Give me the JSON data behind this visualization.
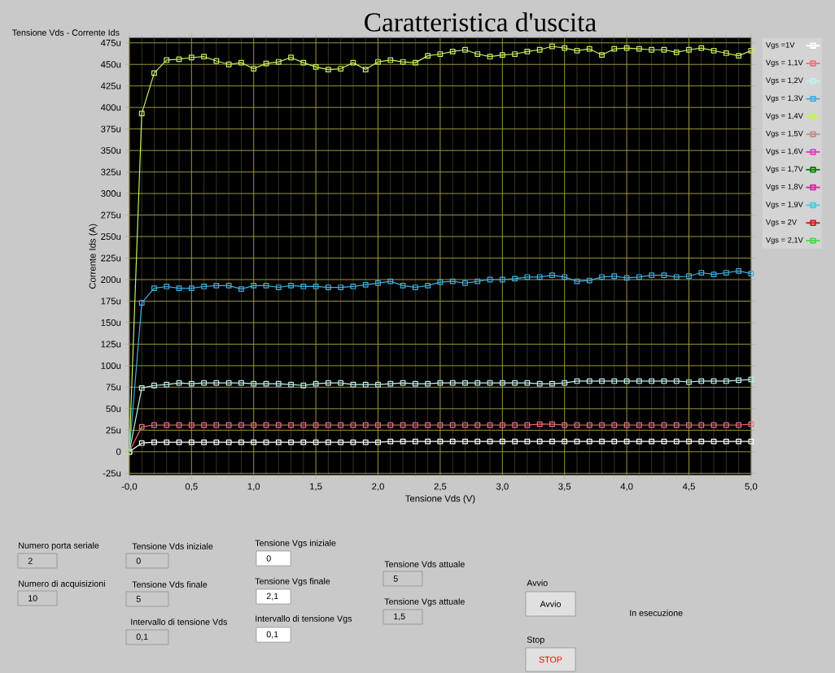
{
  "chart_data": {
    "type": "line",
    "title": "Caratteristica d'uscita",
    "subtitle": "Tensione Vds - Corrente Ids",
    "xlabel": "Tensione Vds (V)",
    "ylabel": "Corrente Ids (A)",
    "x": [
      0,
      0.1,
      0.2,
      0.3,
      0.4,
      0.5,
      0.6,
      0.7,
      0.8,
      0.9,
      1.0,
      1.1,
      1.2,
      1.3,
      1.4,
      1.5,
      1.6,
      1.7,
      1.8,
      1.9,
      2.0,
      2.1,
      2.2,
      2.3,
      2.4,
      2.5,
      2.6,
      2.7,
      2.8,
      2.9,
      3.0,
      3.1,
      3.2,
      3.3,
      3.4,
      3.5,
      3.6,
      3.7,
      3.8,
      3.9,
      4.0,
      4.1,
      4.2,
      4.3,
      4.4,
      4.5,
      4.6,
      4.7,
      4.8,
      4.9,
      5.0
    ],
    "series": [
      {
        "name": "Vgs =1V",
        "color": "#ffffff",
        "values": [
          0,
          10,
          11,
          11,
          11,
          11,
          11,
          11,
          11,
          11,
          11,
          11,
          11,
          11,
          11,
          11,
          11,
          11,
          11,
          11,
          11,
          12,
          12,
          12,
          12,
          12,
          12,
          12,
          12,
          12,
          12,
          12,
          12,
          12,
          12,
          12,
          12,
          12,
          12,
          12,
          12,
          12,
          12,
          12,
          12,
          12,
          12,
          12,
          12,
          12,
          12
        ]
      },
      {
        "name": "Vgs = 1,1V",
        "color": "#f07080",
        "values": [
          0,
          29,
          31,
          31,
          31,
          31,
          31,
          31,
          31,
          31,
          31,
          31,
          31,
          31,
          31,
          31,
          31,
          31,
          31,
          31,
          31,
          31,
          31,
          31,
          31,
          31,
          31,
          31,
          31,
          31,
          31,
          31,
          31,
          32,
          32,
          31,
          31,
          31,
          31,
          31,
          31,
          31,
          31,
          31,
          31,
          31,
          31,
          31,
          31,
          31,
          32
        ]
      },
      {
        "name": "Vgs = 1,2V",
        "color": "#c0f0f0",
        "values": [
          0,
          74,
          77,
          78,
          80,
          79,
          80,
          80,
          80,
          80,
          79,
          79,
          79,
          78,
          77,
          79,
          80,
          80,
          78,
          78,
          78,
          79,
          80,
          79,
          79,
          80,
          80,
          80,
          80,
          80,
          80,
          80,
          80,
          79,
          79,
          80,
          82,
          82,
          82,
          82,
          82,
          82,
          82,
          82,
          82,
          81,
          82,
          82,
          82,
          83,
          84
        ]
      },
      {
        "name": "Vgs = 1,3V",
        "color": "#40b0e0",
        "values": [
          0,
          173,
          190,
          192,
          190,
          190,
          192,
          193,
          193,
          189,
          193,
          193,
          191,
          193,
          192,
          192,
          191,
          191,
          192,
          194,
          196,
          198,
          193,
          191,
          193,
          197,
          198,
          196,
          198,
          200,
          200,
          201,
          203,
          203,
          205,
          203,
          198,
          199,
          203,
          204,
          202,
          203,
          205,
          205,
          203,
          204,
          208,
          206,
          208,
          210,
          207
        ]
      },
      {
        "name": "Vgs = 1,4V",
        "color": "#c8f060",
        "values": [
          0,
          393,
          440,
          455,
          456,
          458,
          459,
          454,
          450,
          452,
          445,
          451,
          453,
          458,
          452,
          447,
          444,
          445,
          452,
          444,
          453,
          455,
          453,
          452,
          460,
          462,
          465,
          467,
          462,
          459,
          461,
          462,
          465,
          467,
          471,
          469,
          466,
          468,
          461,
          468,
          469,
          468,
          467,
          467,
          464,
          467,
          469,
          466,
          463,
          460,
          466
        ]
      },
      {
        "name": "Vgs = 1,5V",
        "color": "#c09090",
        "values": [
          null,
          null,
          null,
          null,
          null,
          null,
          null,
          null,
          null,
          null,
          null,
          null,
          null,
          null,
          null,
          null,
          null,
          null,
          null,
          null,
          null,
          null,
          null,
          null,
          null,
          null,
          null,
          null,
          null,
          null,
          null,
          null,
          null,
          null,
          null,
          null,
          null,
          null,
          null,
          null,
          null,
          null,
          null,
          null,
          null,
          null,
          null,
          null,
          null,
          null,
          null
        ]
      },
      {
        "name": "Vgs = 1,6V",
        "color": "#e040c0",
        "values": [
          null,
          null,
          null,
          null,
          null,
          null,
          null,
          null,
          null,
          null,
          null,
          null,
          null,
          null,
          null,
          null,
          null,
          null,
          null,
          null,
          null,
          null,
          null,
          null,
          null,
          null,
          null,
          null,
          null,
          null,
          null,
          null,
          null,
          null,
          null,
          null,
          null,
          null,
          null,
          null,
          null,
          null,
          null,
          null,
          null,
          null,
          null,
          null,
          null,
          null,
          null
        ]
      },
      {
        "name": "Vgs = 1,7V",
        "color": "#008000",
        "values": [
          null,
          null,
          null,
          null,
          null,
          null,
          null,
          null,
          null,
          null,
          null,
          null,
          null,
          null,
          null,
          null,
          null,
          null,
          null,
          null,
          null,
          null,
          null,
          null,
          null,
          null,
          null,
          null,
          null,
          null,
          null,
          null,
          null,
          null,
          null,
          null,
          null,
          null,
          null,
          null,
          null,
          null,
          null,
          null,
          null,
          null,
          null,
          null,
          null,
          null,
          null
        ]
      },
      {
        "name": "Vgs = 1,8V",
        "color": "#e020a0",
        "values": [
          null,
          null,
          null,
          null,
          null,
          null,
          null,
          null,
          null,
          null,
          null,
          null,
          null,
          null,
          null,
          null,
          null,
          null,
          null,
          null,
          null,
          null,
          null,
          null,
          null,
          null,
          null,
          null,
          null,
          null,
          null,
          null,
          null,
          null,
          null,
          null,
          null,
          null,
          null,
          null,
          null,
          null,
          null,
          null,
          null,
          null,
          null,
          null,
          null,
          null,
          null
        ]
      },
      {
        "name": "Vgs = 1,9V",
        "color": "#40d0e0",
        "values": [
          null,
          null,
          null,
          null,
          null,
          null,
          null,
          null,
          null,
          null,
          null,
          null,
          null,
          null,
          null,
          null,
          null,
          null,
          null,
          null,
          null,
          null,
          null,
          null,
          null,
          null,
          null,
          null,
          null,
          null,
          null,
          null,
          null,
          null,
          null,
          null,
          null,
          null,
          null,
          null,
          null,
          null,
          null,
          null,
          null,
          null,
          null,
          null,
          null,
          null,
          null
        ]
      },
      {
        "name": "Vgs = 2V",
        "color": "#c02020",
        "values": [
          null,
          null,
          null,
          null,
          null,
          null,
          null,
          null,
          null,
          null,
          null,
          null,
          null,
          null,
          null,
          null,
          null,
          null,
          null,
          null,
          null,
          null,
          null,
          null,
          null,
          null,
          null,
          null,
          null,
          null,
          null,
          null,
          null,
          null,
          null,
          null,
          null,
          null,
          null,
          null,
          null,
          null,
          null,
          null,
          null,
          null,
          null,
          null,
          null,
          null,
          null
        ]
      },
      {
        "name": "Vgs = 2,1V",
        "color": "#40e040",
        "values": [
          null,
          null,
          null,
          null,
          null,
          null,
          null,
          null,
          null,
          null,
          null,
          null,
          null,
          null,
          null,
          null,
          null,
          null,
          null,
          null,
          null,
          null,
          null,
          null,
          null,
          null,
          null,
          null,
          null,
          null,
          null,
          null,
          null,
          null,
          null,
          null,
          null,
          null,
          null,
          null,
          null,
          null,
          null,
          null,
          null,
          null,
          null,
          null,
          null,
          null,
          null
        ]
      }
    ],
    "xlim": [
      0,
      5
    ],
    "ylim": [
      -27,
      481
    ],
    "xticks": [
      {
        "value": 0,
        "label": "-0,0"
      },
      {
        "value": 0.5,
        "label": "0,5"
      },
      {
        "value": 1,
        "label": "1,0"
      },
      {
        "value": 1.5,
        "label": "1,5"
      },
      {
        "value": 2,
        "label": "2,0"
      },
      {
        "value": 2.5,
        "label": "2,5"
      },
      {
        "value": 3,
        "label": "3,0"
      },
      {
        "value": 3.5,
        "label": "3,5"
      },
      {
        "value": 4,
        "label": "4,0"
      },
      {
        "value": 4.5,
        "label": "4,5"
      },
      {
        "value": 5,
        "label": "5,0"
      }
    ],
    "yticks": [
      {
        "value": -25,
        "label": "-25u"
      },
      0,
      {
        "value": 25,
        "label": "25u"
      },
      {
        "value": 50,
        "label": "50u"
      },
      {
        "value": 75,
        "label": "75u"
      },
      {
        "value": 100,
        "label": "100u"
      },
      {
        "value": 125,
        "label": "125u"
      },
      {
        "value": 150,
        "label": "150u"
      },
      {
        "value": 175,
        "label": "175u"
      },
      {
        "value": 200,
        "label": "200u"
      },
      {
        "value": 225,
        "label": "225u"
      },
      {
        "value": 250,
        "label": "250u"
      },
      {
        "value": 275,
        "label": "275u"
      },
      {
        "value": 300,
        "label": "300u"
      },
      {
        "value": 325,
        "label": "325u"
      },
      {
        "value": 350,
        "label": "350u"
      },
      {
        "value": 375,
        "label": "375u"
      },
      {
        "value": 400,
        "label": "400u"
      },
      {
        "value": 425,
        "label": "425u"
      },
      {
        "value": 450,
        "label": "450u"
      },
      {
        "value": 475,
        "label": "475u"
      }
    ],
    "grid": true,
    "legend": "right",
    "marker": "square",
    "line_style": "solid",
    "annotations": [
      "Numero porta seriale",
      "2",
      "Numero di acquisizioni",
      "10",
      "Tensione Vds iniziale",
      "0",
      "Tensione Vds finale",
      "5",
      "Intervallo di tensione Vds",
      "0,1",
      "Tensione Vgs iniziale",
      "0",
      "Tensione Vgs finale",
      "2,1",
      "Intervallo di tensione Vgs",
      "0,1",
      "Tensione Vds attuale",
      "5",
      "Tensione Vgs attuale",
      "1,5",
      "Avvio",
      "Avvio",
      "Stop",
      "STOP",
      "In esecuzione"
    ]
  }
}
